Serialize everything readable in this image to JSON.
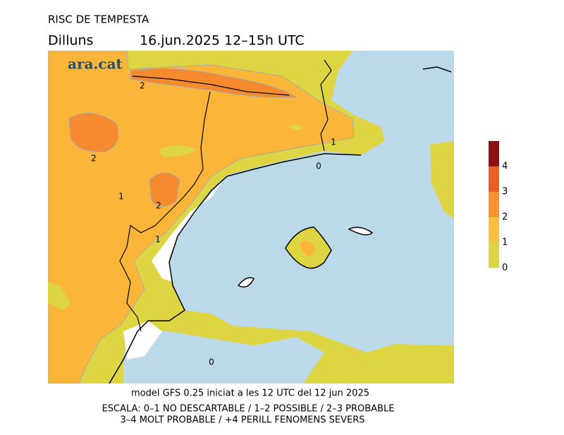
{
  "header": {
    "title": "RISC DE TEMPESTA",
    "day": "Dilluns",
    "period": "16.jun.2025 12–15h UTC"
  },
  "logo": "ara.cat",
  "map": {
    "contour_labels": [
      "2",
      "2",
      "1",
      "2",
      "1",
      "1",
      "0",
      "0"
    ]
  },
  "legend": {
    "levels": [
      0,
      1,
      2,
      3,
      4
    ],
    "colors": [
      "#ddd542",
      "#fbc03c",
      "#f9922f",
      "#eb5f27",
      "#8c1010"
    ]
  },
  "footer": {
    "model": "model GFS 0.25 iniciat a les 12 UTC del 12 jun 2025",
    "scale_line1": "ESCALA: 0–1 NO DESCARTABLE / 1–2 POSSIBLE / 2–3 PROBABLE",
    "scale_line2": "3–4 MOLT PROBABLE / +4 PERILL FENOMENS SEVERS"
  }
}
